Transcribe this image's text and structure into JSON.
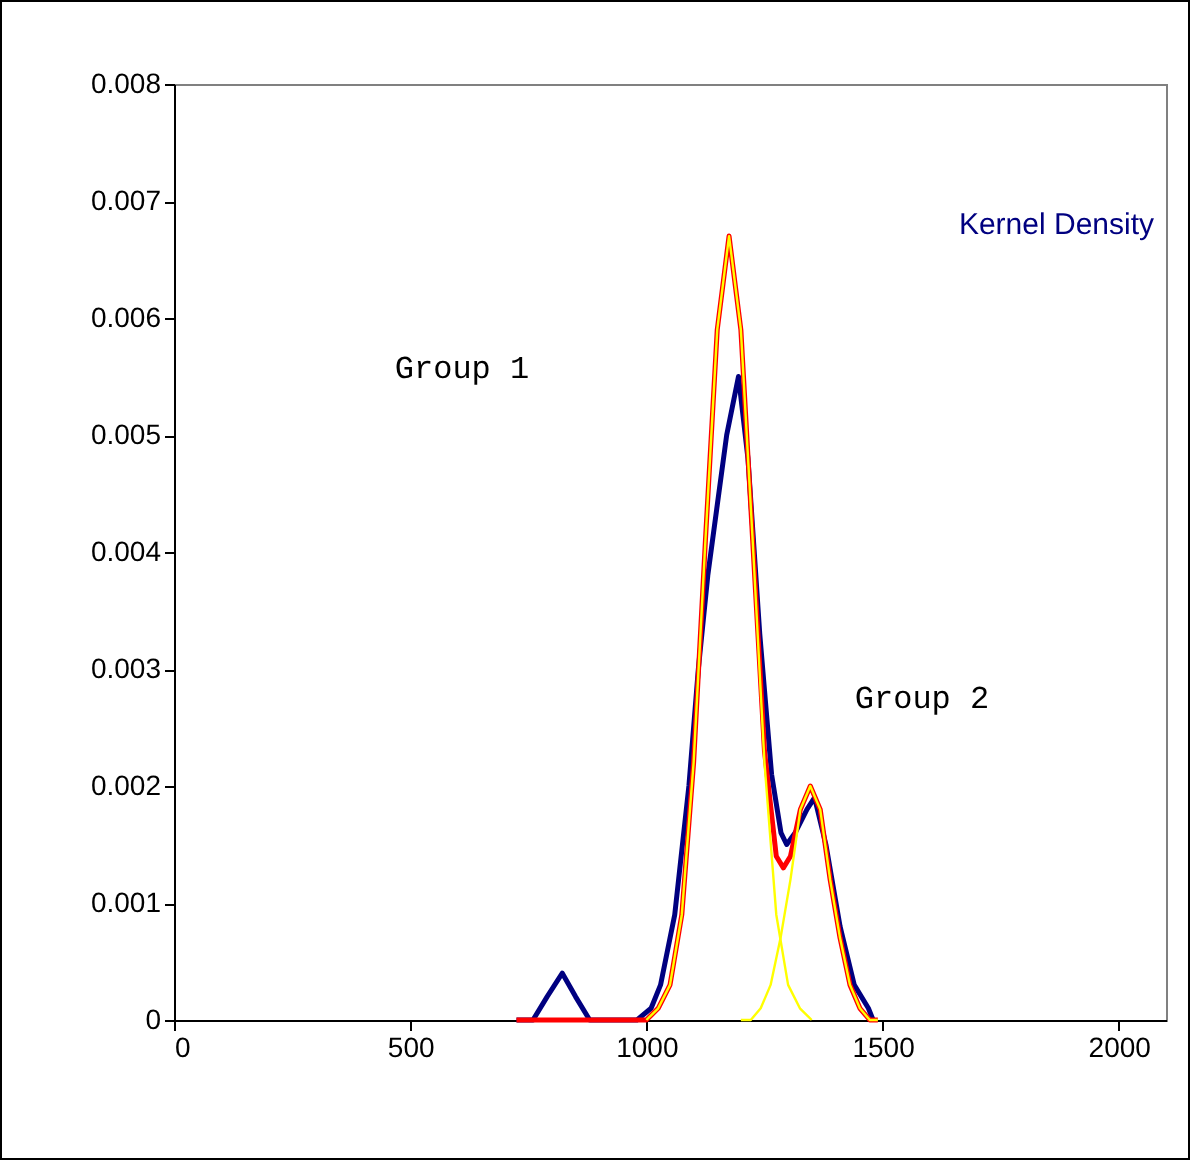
{
  "chart_data": {
    "type": "line",
    "xlim": [
      0,
      2100
    ],
    "xticks": [
      0,
      500,
      1000,
      1500,
      2000
    ],
    "ylim": [
      0,
      0.008
    ],
    "yticks": [
      0,
      0.001,
      0.002,
      0.003,
      0.004,
      0.005,
      0.006,
      0.007,
      0.008
    ],
    "grid": false,
    "marker": "none",
    "line_style": "solid",
    "annotations": [
      "Group 1",
      "Group 2"
    ],
    "series": [
      {
        "name": "Kernel Density",
        "color": "#000080",
        "x": [
          725,
          760,
          790,
          822,
          850,
          880,
          920,
          980,
          1010,
          1030,
          1060,
          1090,
          1110,
          1130,
          1150,
          1170,
          1195,
          1215,
          1240,
          1265,
          1285,
          1297,
          1315,
          1340,
          1356,
          1380,
          1410,
          1440,
          1470,
          1480
        ],
        "values": [
          0,
          0,
          0.0002,
          0.0004,
          0.0002,
          0,
          0,
          0,
          0.0001,
          0.0003,
          0.0009,
          0.002,
          0.003,
          0.0038,
          0.0044,
          0.005,
          0.0055,
          0.0048,
          0.0033,
          0.0021,
          0.0016,
          0.0015,
          0.0016,
          0.0018,
          0.0019,
          0.0015,
          0.0008,
          0.0003,
          0.0001,
          0
        ]
      },
      {
        "color": "#ff0000",
        "x": [
          725,
          1000,
          1025,
          1050,
          1075,
          1100,
          1125,
          1150,
          1175,
          1200,
          1225,
          1250,
          1275,
          1290,
          1305,
          1326,
          1347,
          1368,
          1389,
          1410,
          1431,
          1452,
          1473,
          1490
        ],
        "values": [
          0,
          0,
          0.0001,
          0.0003,
          0.0009,
          0.0022,
          0.0041,
          0.0059,
          0.0067,
          0.0059,
          0.0041,
          0.0023,
          0.0014,
          0.0013,
          0.0014,
          0.0018,
          0.002,
          0.0018,
          0.0012,
          0.0007,
          0.0003,
          0.0001,
          0,
          0
        ]
      },
      {
        "color": "#ffff00",
        "x": [
          1000,
          1025,
          1050,
          1075,
          1100,
          1125,
          1150,
          1175,
          1200,
          1225,
          1250,
          1275,
          1300,
          1325,
          1350
        ],
        "values": [
          0,
          0.0001,
          0.0003,
          0.0009,
          0.0022,
          0.0041,
          0.0059,
          0.0067,
          0.0059,
          0.0041,
          0.0022,
          0.0009,
          0.0003,
          0.0001,
          0
        ]
      },
      {
        "color": "#ffff00",
        "x": [
          1200,
          1221,
          1242,
          1263,
          1284,
          1305,
          1326,
          1347,
          1368,
          1389,
          1410,
          1431,
          1452,
          1473,
          1490
        ],
        "values": [
          0,
          0,
          0.0001,
          0.0003,
          0.0007,
          0.0012,
          0.0018,
          0.002,
          0.0018,
          0.0012,
          0.0007,
          0.0003,
          0.0001,
          0,
          0
        ]
      }
    ]
  }
}
